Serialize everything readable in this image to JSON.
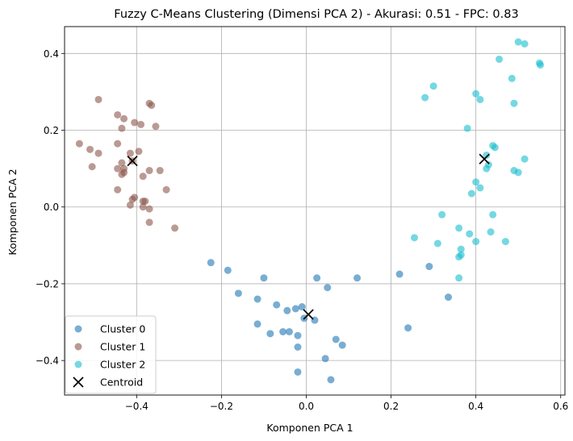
{
  "chart_data": {
    "type": "scatter",
    "title": "Fuzzy C-Means Clustering (Dimensi PCA 2) - Akurasi: 0.51 - FPC: 0.83",
    "xlabel": "Komponen PCA 1",
    "ylabel": "Komponen PCA 2",
    "xlim": [
      -0.57,
      0.61
    ],
    "ylim": [
      -0.49,
      0.47
    ],
    "xticks": [
      -0.4,
      -0.2,
      0.0,
      0.2,
      0.4,
      0.6
    ],
    "xtick_labels": [
      "−0.4",
      "−0.2",
      "0.0",
      "0.2",
      "0.4",
      "0.6"
    ],
    "yticks": [
      -0.4,
      -0.2,
      0.0,
      0.2,
      0.4
    ],
    "ytick_labels": [
      "−0.4",
      "−0.2",
      "0.0",
      "0.2",
      "0.4"
    ],
    "grid": true,
    "legend_position": "lower-left",
    "series": [
      {
        "name": "Cluster 0",
        "color": "#1f77b4",
        "marker": "circle",
        "points": [
          [
            -0.225,
            -0.145
          ],
          [
            -0.185,
            -0.165
          ],
          [
            -0.16,
            -0.225
          ],
          [
            -0.1,
            -0.185
          ],
          [
            -0.115,
            -0.24
          ],
          [
            -0.07,
            -0.255
          ],
          [
            -0.045,
            -0.27
          ],
          [
            -0.025,
            -0.265
          ],
          [
            -0.01,
            -0.26
          ],
          [
            -0.115,
            -0.305
          ],
          [
            -0.085,
            -0.33
          ],
          [
            -0.055,
            -0.325
          ],
          [
            -0.04,
            -0.325
          ],
          [
            -0.02,
            -0.335
          ],
          [
            -0.005,
            -0.29
          ],
          [
            0.02,
            -0.295
          ],
          [
            0.025,
            -0.185
          ],
          [
            0.05,
            -0.21
          ],
          [
            0.12,
            -0.185
          ],
          [
            -0.02,
            -0.365
          ],
          [
            0.07,
            -0.345
          ],
          [
            0.085,
            -0.36
          ],
          [
            0.045,
            -0.395
          ],
          [
            -0.02,
            -0.43
          ],
          [
            0.058,
            -0.45
          ],
          [
            0.22,
            -0.175
          ],
          [
            0.29,
            -0.155
          ],
          [
            0.24,
            -0.315
          ],
          [
            0.335,
            -0.235
          ]
        ]
      },
      {
        "name": "Cluster 1",
        "color": "#8c564b",
        "marker": "circle",
        "points": [
          [
            -0.49,
            0.28
          ],
          [
            -0.445,
            0.24
          ],
          [
            -0.43,
            0.23
          ],
          [
            -0.37,
            0.27
          ],
          [
            -0.365,
            0.265
          ],
          [
            -0.405,
            0.22
          ],
          [
            -0.39,
            0.215
          ],
          [
            -0.355,
            0.21
          ],
          [
            -0.435,
            0.205
          ],
          [
            -0.535,
            0.165
          ],
          [
            -0.51,
            0.15
          ],
          [
            -0.49,
            0.14
          ],
          [
            -0.445,
            0.165
          ],
          [
            -0.415,
            0.14
          ],
          [
            -0.395,
            0.145
          ],
          [
            -0.435,
            0.115
          ],
          [
            -0.43,
            0.1
          ],
          [
            -0.445,
            0.1
          ],
          [
            -0.41,
            0.12
          ],
          [
            -0.505,
            0.105
          ],
          [
            -0.43,
            0.09
          ],
          [
            -0.435,
            0.085
          ],
          [
            -0.37,
            0.095
          ],
          [
            -0.385,
            0.08
          ],
          [
            -0.345,
            0.095
          ],
          [
            -0.33,
            0.045
          ],
          [
            -0.445,
            0.045
          ],
          [
            -0.41,
            0.02
          ],
          [
            -0.405,
            0.025
          ],
          [
            -0.385,
            0.015
          ],
          [
            -0.38,
            0.015
          ],
          [
            -0.415,
            0.005
          ],
          [
            -0.385,
            0.0
          ],
          [
            -0.37,
            -0.005
          ],
          [
            -0.37,
            -0.04
          ],
          [
            -0.31,
            -0.055
          ]
        ]
      },
      {
        "name": "Cluster 2",
        "color": "#17becf",
        "marker": "circle",
        "points": [
          [
            0.5,
            0.43
          ],
          [
            0.515,
            0.425
          ],
          [
            0.55,
            0.375
          ],
          [
            0.552,
            0.37
          ],
          [
            0.455,
            0.385
          ],
          [
            0.485,
            0.335
          ],
          [
            0.3,
            0.315
          ],
          [
            0.28,
            0.285
          ],
          [
            0.4,
            0.295
          ],
          [
            0.41,
            0.28
          ],
          [
            0.49,
            0.27
          ],
          [
            0.38,
            0.205
          ],
          [
            0.44,
            0.16
          ],
          [
            0.445,
            0.155
          ],
          [
            0.425,
            0.135
          ],
          [
            0.515,
            0.125
          ],
          [
            0.43,
            0.11
          ],
          [
            0.425,
            0.1
          ],
          [
            0.49,
            0.095
          ],
          [
            0.5,
            0.09
          ],
          [
            0.4,
            0.065
          ],
          [
            0.41,
            0.05
          ],
          [
            0.39,
            0.035
          ],
          [
            0.32,
            -0.02
          ],
          [
            0.44,
            -0.02
          ],
          [
            0.36,
            -0.055
          ],
          [
            0.385,
            -0.07
          ],
          [
            0.435,
            -0.065
          ],
          [
            0.255,
            -0.08
          ],
          [
            0.31,
            -0.095
          ],
          [
            0.4,
            -0.09
          ],
          [
            0.47,
            -0.09
          ],
          [
            0.365,
            -0.11
          ],
          [
            0.365,
            -0.125
          ],
          [
            0.36,
            -0.13
          ],
          [
            0.36,
            -0.185
          ]
        ]
      },
      {
        "name": "Centroid",
        "color": "#000000",
        "marker": "x",
        "points": [
          [
            0.42,
            0.125
          ],
          [
            -0.41,
            0.12
          ],
          [
            0.005,
            -0.28
          ]
        ]
      }
    ]
  }
}
